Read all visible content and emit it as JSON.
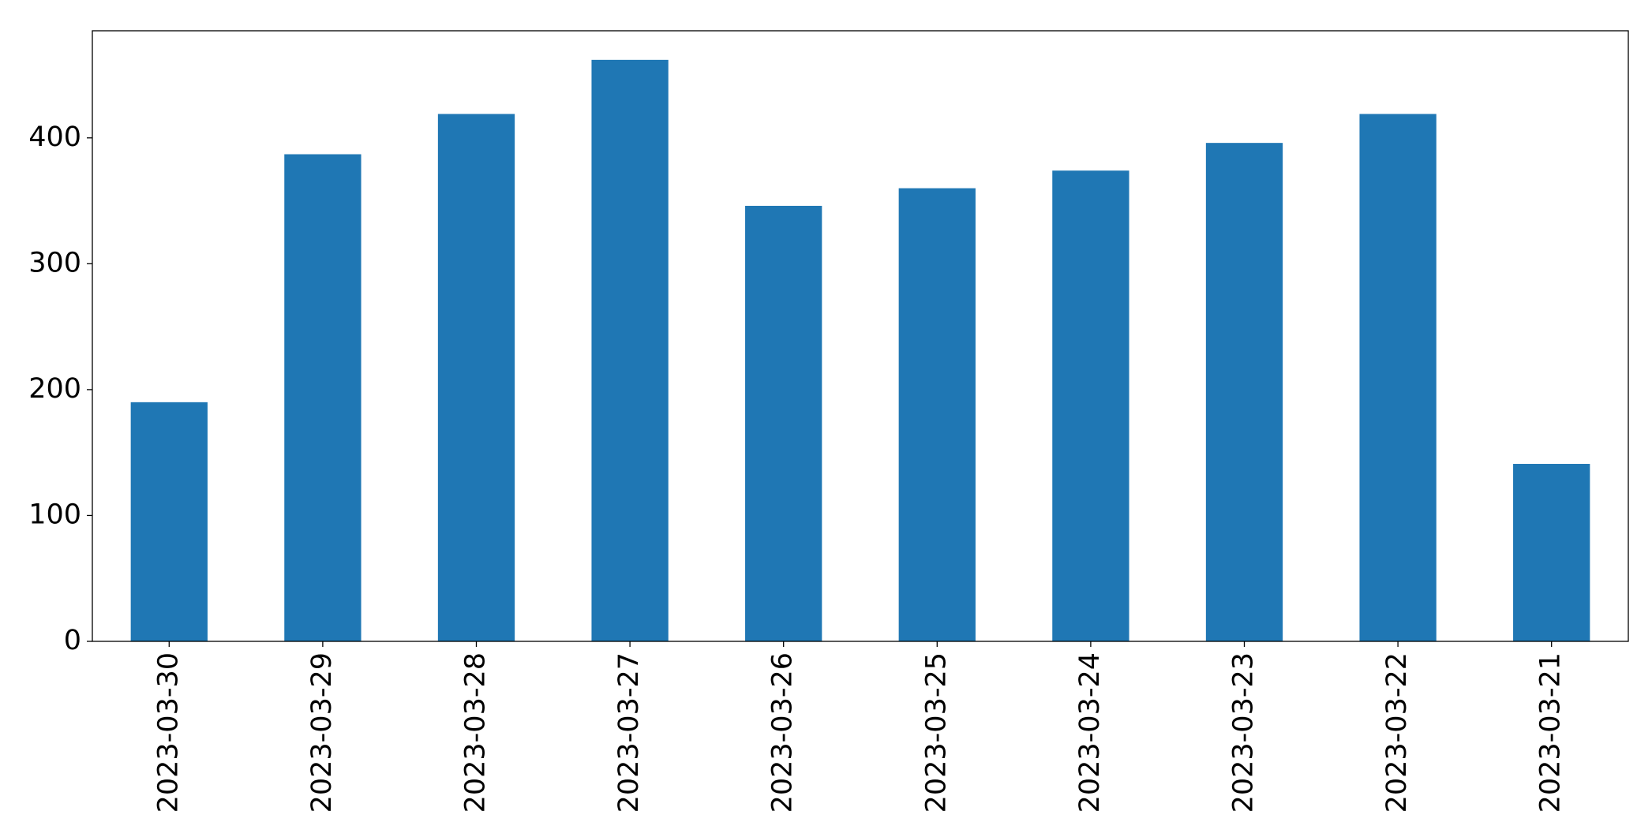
{
  "chart_data": {
    "type": "bar",
    "categories": [
      "2023-03-30",
      "2023-03-29",
      "2023-03-28",
      "2023-03-27",
      "2023-03-26",
      "2023-03-25",
      "2023-03-24",
      "2023-03-23",
      "2023-03-22",
      "2023-03-21"
    ],
    "values": [
      190,
      387,
      419,
      462,
      346,
      360,
      374,
      396,
      419,
      141
    ],
    "color": "#1f77b4",
    "ylim": [
      0,
      485.1
    ],
    "yticks": [
      0,
      100,
      200,
      300,
      400
    ],
    "grid": false
  }
}
